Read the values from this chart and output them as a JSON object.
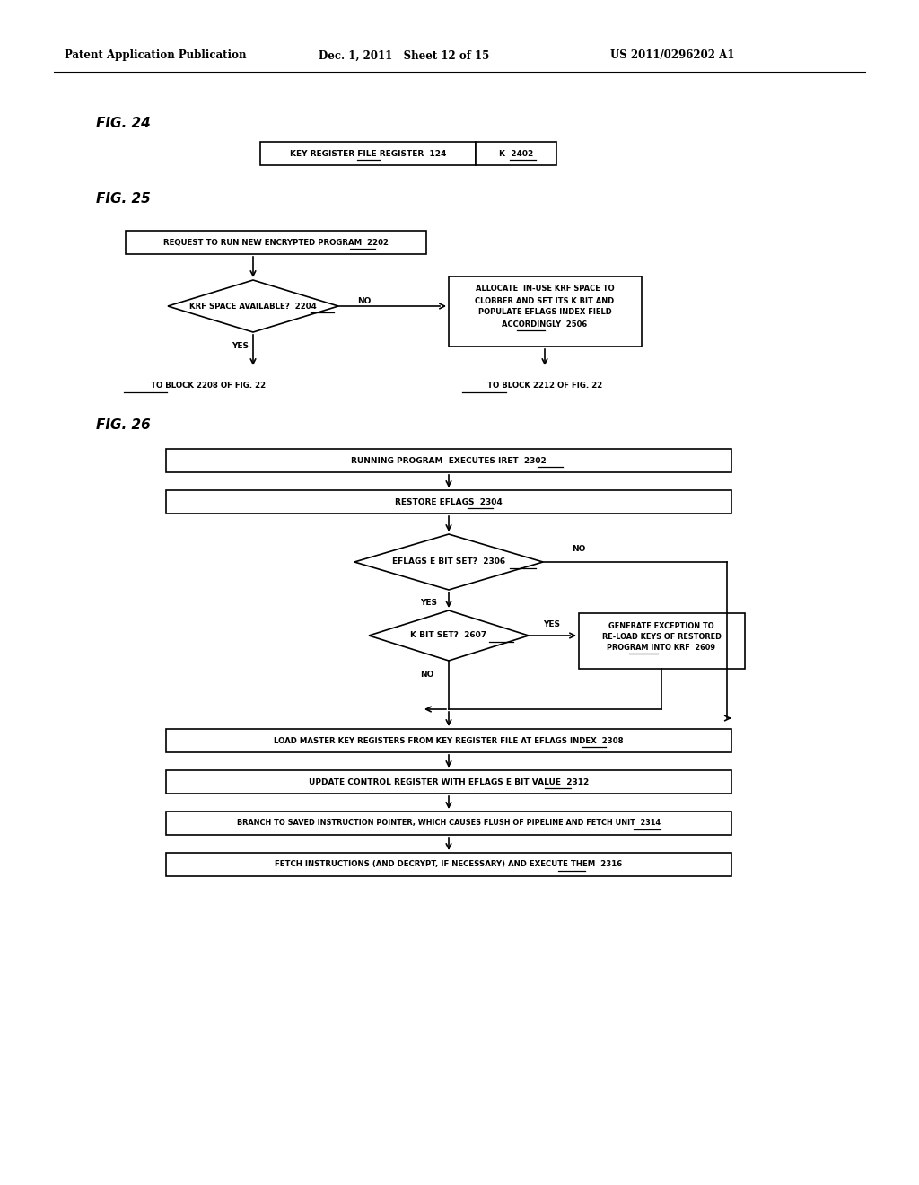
{
  "bg_color": "#ffffff",
  "header_left": "Patent Application Publication",
  "header_mid": "Dec. 1, 2011   Sheet 12 of 15",
  "header_right": "US 2011/0296202 A1"
}
